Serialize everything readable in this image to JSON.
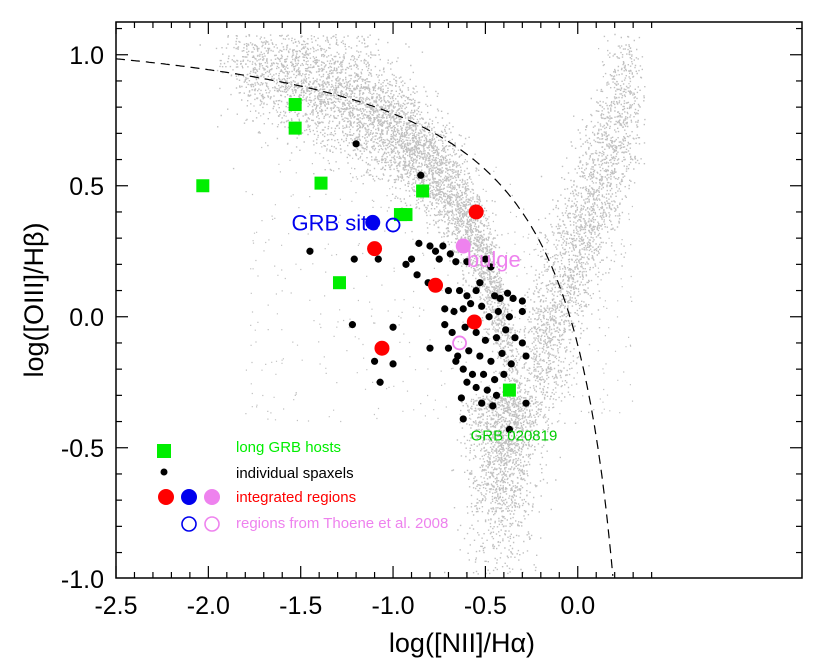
{
  "chart_data": {
    "type": "scatter",
    "title": "",
    "xlabel": "log([NII]/Hα)",
    "ylabel": "log([OIII]/Hβ)",
    "xlim": [
      -2.5,
      0.4
    ],
    "ylim": [
      -1.0,
      1.1
    ],
    "x_ticks": [
      -2.5,
      -2.0,
      -1.5,
      -1.0,
      -0.5,
      0.0
    ],
    "x_tick_labels": [
      "-2.5",
      "-2.0",
      "-1.5",
      "-1.0",
      "-0.5",
      "0.0"
    ],
    "y_ticks": [
      -1.0,
      -0.5,
      0.0,
      0.5,
      1.0
    ],
    "y_tick_labels": [
      "-1.0",
      "-0.5",
      "0.0",
      "0.5",
      "1.0"
    ],
    "grid": false,
    "legend_position": "bottom-left",
    "colors": {
      "background_cloud": "#c0c0c0",
      "long_grb_hosts": "#00ee00",
      "spaxels": "#000000",
      "integrated_red": "#ff0000",
      "integrated_blue": "#0000ee",
      "integrated_violet": "#ee82ee"
    },
    "legend": [
      {
        "label": "long GRB hosts",
        "marker": "square",
        "color": "#00ee00"
      },
      {
        "label": "individual spaxels",
        "marker": "dot",
        "color": "#000000"
      },
      {
        "label": "integrated regions",
        "marker": "filled-circles",
        "colors": [
          "#ff0000",
          "#0000ee",
          "#ee82ee"
        ]
      },
      {
        "label": "regions from Thoene et al. 2008",
        "marker": "open-circles",
        "colors": [
          "#0000ee",
          "#ee82ee"
        ]
      }
    ],
    "annotations": [
      {
        "text": "GRB site",
        "x": -1.55,
        "y": 0.36,
        "color": "#0000ee"
      },
      {
        "text": "bulge",
        "x": -0.6,
        "y": 0.22,
        "color": "#ee82ee"
      },
      {
        "text": "GRB 020819",
        "x": -0.58,
        "y": -0.45,
        "color": "#00cc00"
      }
    ],
    "series": [
      {
        "name": "long GRB hosts",
        "marker": "square",
        "color": "#00ee00",
        "points": [
          [
            -1.53,
            0.81
          ],
          [
            -1.53,
            0.72
          ],
          [
            -2.03,
            0.5
          ],
          [
            -1.39,
            0.51
          ],
          [
            -0.84,
            0.48
          ],
          [
            -0.96,
            0.39
          ],
          [
            -0.93,
            0.39
          ],
          [
            -1.29,
            0.13
          ],
          [
            -0.37,
            -0.28
          ]
        ]
      },
      {
        "name": "individual spaxels",
        "marker": "dot",
        "color": "#000000",
        "points": [
          [
            -1.2,
            0.66
          ],
          [
            -0.85,
            0.54
          ],
          [
            -1.45,
            0.25
          ],
          [
            -1.21,
            0.22
          ],
          [
            -1.08,
            0.22
          ],
          [
            -0.9,
            0.22
          ],
          [
            -0.86,
            0.28
          ],
          [
            -0.8,
            0.27
          ],
          [
            -0.77,
            0.25
          ],
          [
            -0.75,
            0.22
          ],
          [
            -0.73,
            0.27
          ],
          [
            -0.69,
            0.24
          ],
          [
            -0.66,
            0.21
          ],
          [
            -0.6,
            0.21
          ],
          [
            -0.5,
            0.22
          ],
          [
            -0.47,
            0.19
          ],
          [
            -0.93,
            0.2
          ],
          [
            -0.87,
            0.16
          ],
          [
            -0.81,
            0.13
          ],
          [
            -0.75,
            0.12
          ],
          [
            -0.7,
            0.1
          ],
          [
            -0.64,
            0.1
          ],
          [
            -0.6,
            0.08
          ],
          [
            -0.55,
            0.1
          ],
          [
            -0.53,
            0.13
          ],
          [
            -0.45,
            0.08
          ],
          [
            -0.42,
            0.07
          ],
          [
            -0.38,
            0.09
          ],
          [
            -0.35,
            0.07
          ],
          [
            -0.3,
            0.06
          ],
          [
            -0.72,
            0.03
          ],
          [
            -0.67,
            0.02
          ],
          [
            -0.62,
            0.03
          ],
          [
            -0.58,
            0.05
          ],
          [
            -0.52,
            0.04
          ],
          [
            -0.48,
            0.0
          ],
          [
            -0.43,
            0.02
          ],
          [
            -0.37,
            0.0
          ],
          [
            -0.3,
            0.02
          ],
          [
            -0.72,
            -0.03
          ],
          [
            -0.68,
            -0.06
          ],
          [
            -0.61,
            -0.04
          ],
          [
            -0.55,
            -0.06
          ],
          [
            -0.5,
            -0.09
          ],
          [
            -0.44,
            -0.08
          ],
          [
            -0.39,
            -0.05
          ],
          [
            -0.34,
            -0.08
          ],
          [
            -0.3,
            -0.1
          ],
          [
            -0.28,
            -0.15
          ],
          [
            -0.7,
            -0.12
          ],
          [
            -0.65,
            -0.15
          ],
          [
            -0.59,
            -0.13
          ],
          [
            -0.53,
            -0.15
          ],
          [
            -0.47,
            -0.17
          ],
          [
            -0.41,
            -0.14
          ],
          [
            -0.36,
            -0.18
          ],
          [
            -0.62,
            -0.2
          ],
          [
            -0.57,
            -0.22
          ],
          [
            -0.51,
            -0.22
          ],
          [
            -0.45,
            -0.24
          ],
          [
            -0.4,
            -0.22
          ],
          [
            -0.6,
            -0.25
          ],
          [
            -0.55,
            -0.27
          ],
          [
            -0.49,
            -0.28
          ],
          [
            -0.44,
            -0.3
          ],
          [
            -0.52,
            -0.33
          ],
          [
            -0.46,
            -0.34
          ],
          [
            -0.28,
            -0.33
          ],
          [
            -0.62,
            -0.39
          ],
          [
            -0.37,
            -0.43
          ],
          [
            -1.22,
            -0.03
          ],
          [
            -1.0,
            -0.04
          ],
          [
            -1.1,
            -0.17
          ],
          [
            -1.07,
            -0.25
          ],
          [
            -1.0,
            -0.18
          ],
          [
            -0.8,
            -0.12
          ],
          [
            -0.66,
            -0.17
          ],
          [
            -0.63,
            -0.31
          ]
        ]
      },
      {
        "name": "integrated regions",
        "marker": "filled-circle",
        "points": [
          {
            "x": -1.11,
            "y": 0.36,
            "color": "#0000ee"
          },
          {
            "x": -1.1,
            "y": 0.26,
            "color": "#ff0000"
          },
          {
            "x": -1.06,
            "y": -0.12,
            "color": "#ff0000"
          },
          {
            "x": -0.77,
            "y": 0.12,
            "color": "#ff0000"
          },
          {
            "x": -0.56,
            "y": -0.02,
            "color": "#ff0000"
          },
          {
            "x": -0.55,
            "y": 0.4,
            "color": "#ff0000"
          },
          {
            "x": -0.62,
            "y": 0.27,
            "color": "#ee82ee"
          }
        ]
      },
      {
        "name": "regions from Thoene et al. 2008",
        "marker": "open-circle",
        "points": [
          {
            "x": -1.0,
            "y": 0.35,
            "color": "#0000ee"
          },
          {
            "x": -0.64,
            "y": -0.1,
            "color": "#ee82ee"
          }
        ]
      }
    ],
    "kewley_curve": {
      "style": "dashed",
      "equation": "0.61/(x-0.47)+1.19"
    }
  }
}
